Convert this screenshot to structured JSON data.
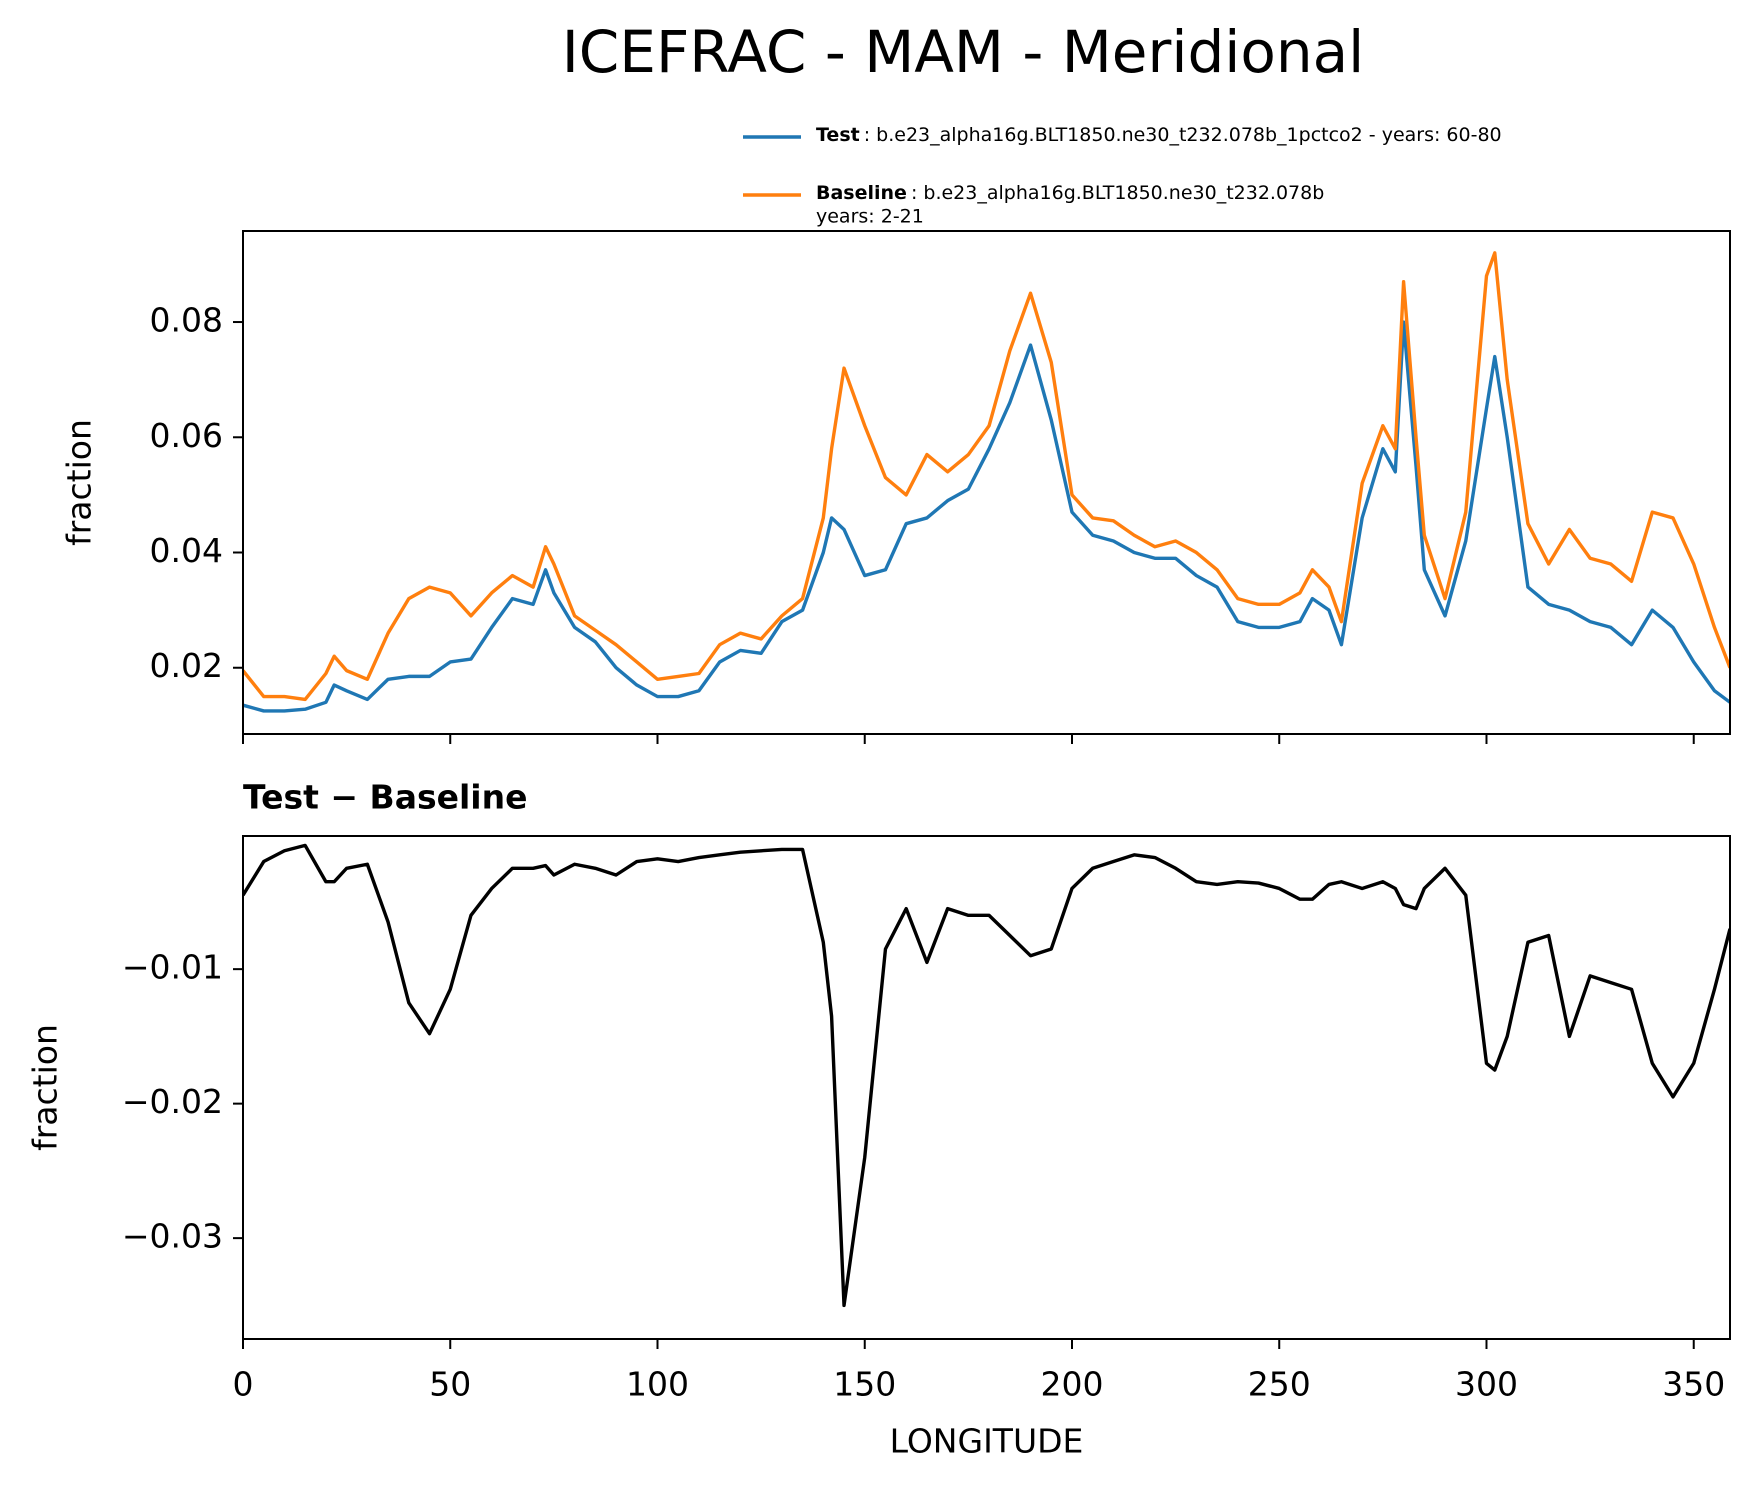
{
  "title": "ICEFRAC - MAM - Meridional",
  "chart_data": [
    {
      "type": "line",
      "ylabel": "fraction",
      "legend": "upper right",
      "x": [
        0,
        5,
        10,
        15,
        20,
        22,
        25,
        30,
        35,
        40,
        45,
        50,
        55,
        60,
        65,
        70,
        73,
        75,
        80,
        85,
        90,
        95,
        100,
        105,
        110,
        115,
        120,
        125,
        130,
        135,
        140,
        142,
        145,
        150,
        155,
        160,
        165,
        170,
        175,
        180,
        185,
        190,
        195,
        200,
        205,
        210,
        215,
        220,
        225,
        230,
        235,
        240,
        245,
        250,
        255,
        258,
        262,
        265,
        270,
        275,
        278,
        280,
        283,
        285,
        290,
        295,
        300,
        302,
        305,
        310,
        315,
        320,
        325,
        330,
        335,
        340,
        345,
        350,
        355,
        358.75
      ],
      "xlim": [
        0,
        358.75
      ],
      "xticks": [
        0,
        50,
        100,
        150,
        200,
        250,
        300,
        350
      ],
      "ylim": [
        0.0085,
        0.0958
      ],
      "yticks": [
        0.02,
        0.04,
        0.06,
        0.08
      ],
      "series": [
        {
          "name": "Test",
          "description": [
            ": b.e23_alpha16g.BLT1850.ne30_t232.078b_1pctco2 - years: 60-80"
          ],
          "color": "#1f77b4",
          "values": [
            0.0135,
            0.0125,
            0.0125,
            0.0128,
            0.014,
            0.017,
            0.016,
            0.0145,
            0.018,
            0.0185,
            0.0185,
            0.021,
            0.0215,
            0.027,
            0.032,
            0.031,
            0.037,
            0.033,
            0.027,
            0.0245,
            0.02,
            0.017,
            0.015,
            0.015,
            0.016,
            0.021,
            0.023,
            0.0225,
            0.028,
            0.03,
            0.04,
            0.046,
            0.044,
            0.036,
            0.037,
            0.045,
            0.046,
            0.049,
            0.051,
            0.058,
            0.066,
            0.076,
            0.063,
            0.047,
            0.043,
            0.042,
            0.04,
            0.039,
            0.039,
            0.036,
            0.034,
            0.028,
            0.027,
            0.027,
            0.028,
            0.032,
            0.03,
            0.024,
            0.046,
            0.058,
            0.054,
            0.08,
            0.055,
            0.037,
            0.029,
            0.042,
            0.065,
            0.074,
            0.06,
            0.034,
            0.031,
            0.03,
            0.028,
            0.027,
            0.024,
            0.03,
            0.027,
            0.021,
            0.016,
            0.014
          ]
        },
        {
          "name": "Baseline",
          "description": [
            ": b.e23_alpha16g.BLT1850.ne30_t232.078b",
            "years: 2-21"
          ],
          "color": "#ff7f0e",
          "values": [
            0.0195,
            0.015,
            0.015,
            0.0145,
            0.019,
            0.022,
            0.0195,
            0.018,
            0.026,
            0.032,
            0.034,
            0.033,
            0.029,
            0.033,
            0.036,
            0.034,
            0.041,
            0.038,
            0.029,
            0.0265,
            0.024,
            0.021,
            0.018,
            0.0185,
            0.019,
            0.024,
            0.026,
            0.025,
            0.029,
            0.032,
            0.046,
            0.058,
            0.072,
            0.062,
            0.053,
            0.05,
            0.057,
            0.054,
            0.057,
            0.062,
            0.075,
            0.085,
            0.073,
            0.05,
            0.046,
            0.0455,
            0.043,
            0.041,
            0.042,
            0.04,
            0.037,
            0.032,
            0.031,
            0.031,
            0.033,
            0.037,
            0.034,
            0.028,
            0.052,
            0.062,
            0.058,
            0.087,
            0.06,
            0.043,
            0.032,
            0.047,
            0.088,
            0.092,
            0.07,
            0.045,
            0.038,
            0.044,
            0.039,
            0.038,
            0.035,
            0.047,
            0.046,
            0.038,
            0.027,
            0.02
          ]
        }
      ]
    },
    {
      "type": "line",
      "title": "Test − Baseline",
      "ylabel": "fraction",
      "xlabel": "LONGITUDE",
      "x": [
        0,
        5,
        10,
        15,
        20,
        22,
        25,
        30,
        35,
        40,
        45,
        50,
        55,
        60,
        65,
        70,
        73,
        75,
        80,
        85,
        90,
        95,
        100,
        105,
        110,
        115,
        120,
        125,
        130,
        135,
        140,
        142,
        145,
        150,
        155,
        160,
        165,
        170,
        175,
        180,
        185,
        190,
        195,
        200,
        205,
        210,
        215,
        220,
        225,
        230,
        235,
        240,
        245,
        250,
        255,
        258,
        262,
        265,
        270,
        275,
        278,
        280,
        283,
        285,
        290,
        295,
        300,
        302,
        305,
        310,
        315,
        320,
        325,
        330,
        335,
        340,
        345,
        350,
        355,
        358.75
      ],
      "xlim": [
        0,
        358.75
      ],
      "xticks": [
        0,
        50,
        100,
        150,
        200,
        250,
        300,
        350
      ],
      "ylim": [
        -0.0375,
        -0.0001
      ],
      "yticks": [
        {
          "value": -0.03,
          "label": "−0.03"
        },
        {
          "value": -0.02,
          "label": "−0.02"
        },
        {
          "value": -0.01,
          "label": "−0.01"
        }
      ],
      "series": [
        {
          "color": "#000000",
          "values": [
            -0.0045,
            -0.002,
            -0.0012,
            -0.0008,
            -0.0035,
            -0.0035,
            -0.0025,
            -0.0022,
            -0.0065,
            -0.0125,
            -0.0148,
            -0.0115,
            -0.006,
            -0.004,
            -0.0025,
            -0.0025,
            -0.0023,
            -0.003,
            -0.0022,
            -0.0025,
            -0.003,
            -0.002,
            -0.0018,
            -0.002,
            -0.0017,
            -0.0015,
            -0.0013,
            -0.0012,
            -0.0011,
            -0.0011,
            -0.008,
            -0.0135,
            -0.035,
            -0.024,
            -0.0085,
            -0.0055,
            -0.0095,
            -0.0055,
            -0.006,
            -0.006,
            -0.0075,
            -0.009,
            -0.0085,
            -0.004,
            -0.0025,
            -0.002,
            -0.0015,
            -0.0017,
            -0.0025,
            -0.0035,
            -0.0037,
            -0.0035,
            -0.0036,
            -0.004,
            -0.0048,
            -0.0048,
            -0.0037,
            -0.0035,
            -0.004,
            -0.0035,
            -0.004,
            -0.0052,
            -0.0055,
            -0.004,
            -0.0025,
            -0.0045,
            -0.017,
            -0.0175,
            -0.015,
            -0.008,
            -0.0075,
            -0.015,
            -0.0105,
            -0.011,
            -0.0115,
            -0.017,
            -0.0195,
            -0.017,
            -0.0115,
            -0.007
          ]
        }
      ]
    }
  ]
}
